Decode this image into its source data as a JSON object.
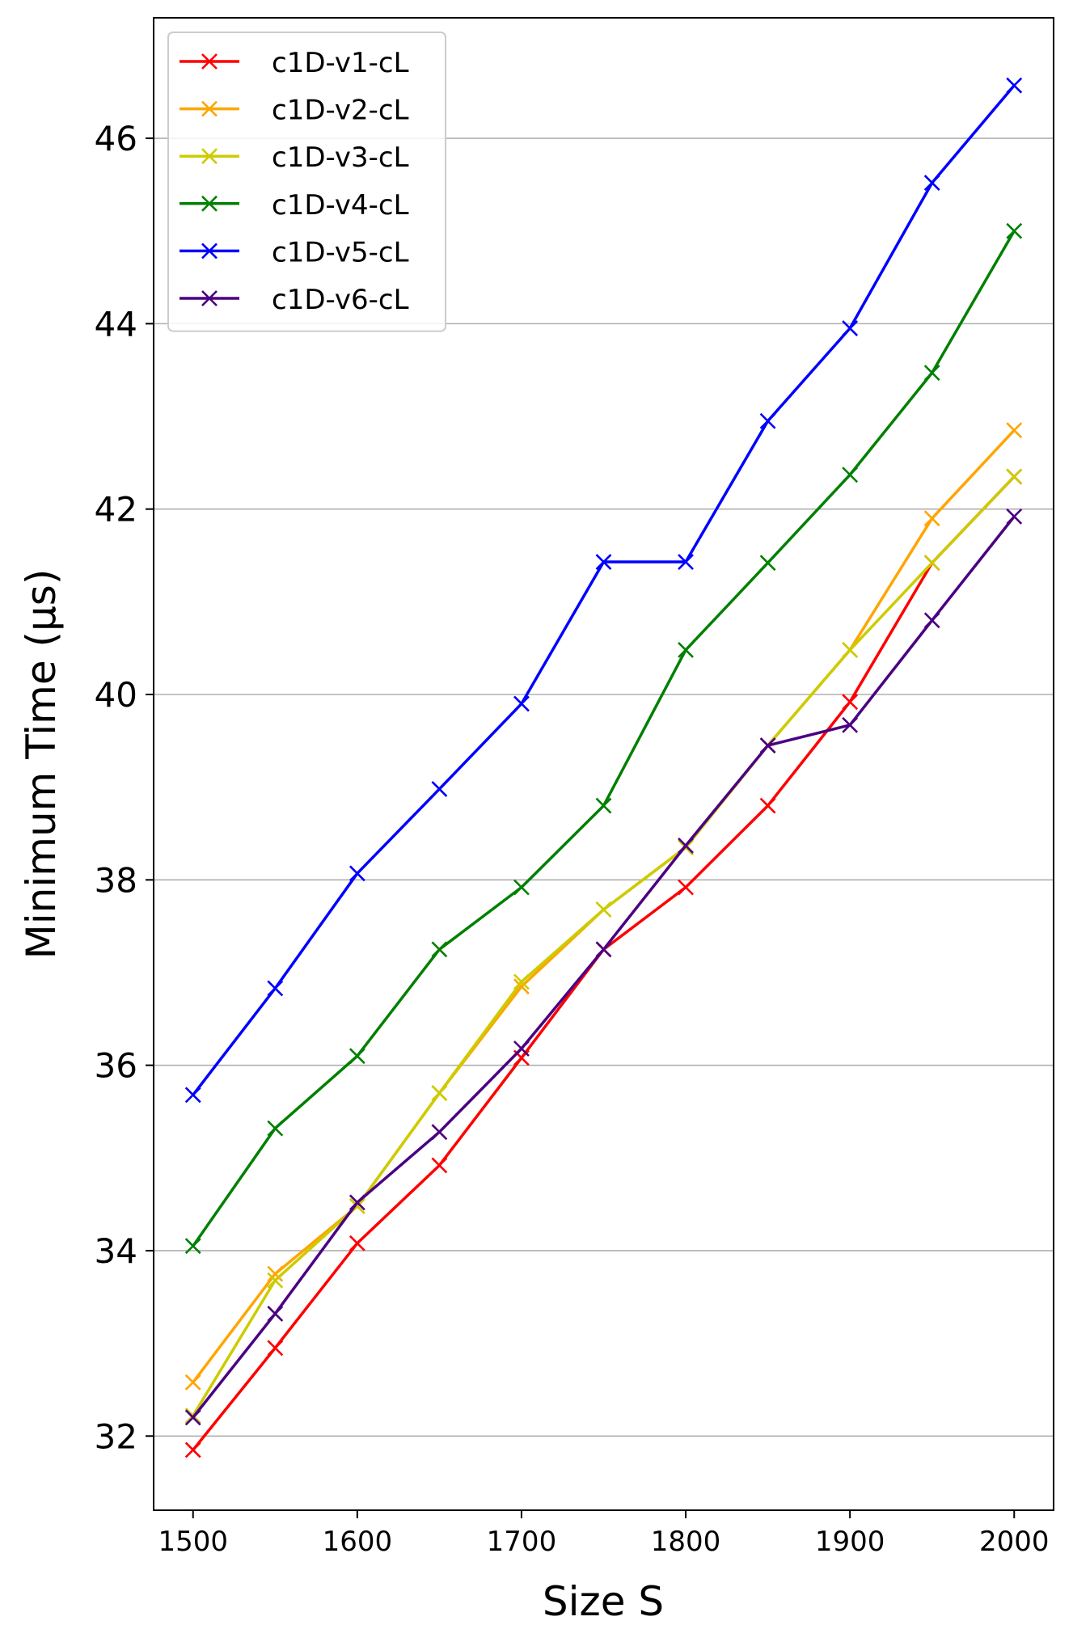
{
  "chart_data": {
    "type": "line",
    "xlabel": "Size S",
    "ylabel": "Minimum Time (µs)",
    "xlim": [
      1476,
      2024
    ],
    "ylim": [
      31.2,
      47.3
    ],
    "xticks": [
      1500,
      1600,
      1700,
      1800,
      1900,
      2000
    ],
    "yticks": [
      32,
      34,
      36,
      38,
      40,
      42,
      44,
      46
    ],
    "grid": "horizontal",
    "legend_position": "top-left",
    "marker": "x",
    "x": [
      1500,
      1550,
      1600,
      1650,
      1700,
      1750,
      1800,
      1850,
      1900,
      1950,
      2000
    ],
    "series": [
      {
        "name": "c1D-v1-cL",
        "color": "#ff0000",
        "values": [
          31.85,
          32.95,
          34.08,
          34.92,
          36.08,
          37.25,
          37.92,
          38.8,
          39.92,
          41.42,
          42.35
        ]
      },
      {
        "name": "c1D-v2-cL",
        "color": "#ffa500",
        "values": [
          32.58,
          33.75,
          34.48,
          35.7,
          36.85,
          37.68,
          38.35,
          39.45,
          40.48,
          41.9,
          42.85
        ]
      },
      {
        "name": "c1D-v3-cL",
        "color": "#cccc00",
        "values": [
          32.22,
          33.68,
          34.48,
          35.7,
          36.9,
          37.68,
          38.35,
          39.45,
          40.48,
          41.42,
          42.35
        ]
      },
      {
        "name": "c1D-v4-cL",
        "color": "#008000",
        "values": [
          34.05,
          35.32,
          36.1,
          37.25,
          37.92,
          38.8,
          40.48,
          41.42,
          42.37,
          43.47,
          45.0
        ]
      },
      {
        "name": "c1D-v5-cL",
        "color": "#0000ff",
        "values": [
          35.68,
          36.83,
          38.07,
          38.98,
          39.9,
          41.43,
          41.43,
          42.95,
          43.95,
          45.52,
          46.57
        ]
      },
      {
        "name": "c1D-v6-cL",
        "color": "#4b0082",
        "values": [
          32.2,
          33.32,
          34.52,
          35.28,
          36.18,
          37.25,
          38.37,
          39.45,
          39.67,
          40.8,
          41.92
        ]
      }
    ]
  }
}
